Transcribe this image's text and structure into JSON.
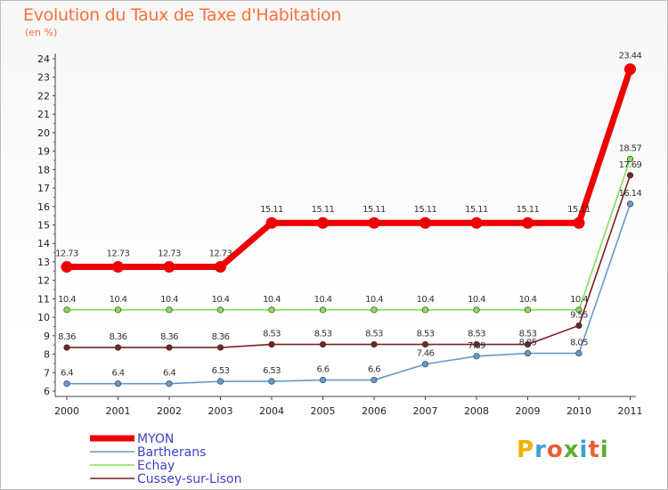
{
  "title": "Evolution du Taux de Taxe d'Habitation",
  "subtitle": "(en %)",
  "brand": {
    "letters": [
      "P",
      "r",
      "o",
      "x",
      "i",
      "t",
      "i"
    ],
    "colors": [
      "#f0b000",
      "#3aa0d8",
      "#e8603a",
      "#5cb030",
      "#3aa0d8",
      "#e8603a",
      "#5cb030"
    ]
  },
  "chart_data": {
    "type": "line",
    "title": "Evolution du Taux de Taxe d'Habitation",
    "ylabel": "(en %)",
    "xlabel": "",
    "ylim": [
      6,
      24
    ],
    "yticks": [
      "6",
      "7",
      "8",
      "9",
      "10",
      "11",
      "12",
      "13",
      "14",
      "15",
      "16",
      "17",
      "18",
      "19",
      "20",
      "21",
      "22",
      "23",
      "24"
    ],
    "categories": [
      "2000",
      "2001",
      "2002",
      "2003",
      "2004",
      "2005",
      "2006",
      "2007",
      "2008",
      "2009",
      "2010",
      "2011"
    ],
    "grid": false,
    "legend": "bottom-left",
    "series": [
      {
        "name": "MYON",
        "color": "#ee0000",
        "values": [
          12.73,
          12.73,
          12.73,
          12.73,
          15.11,
          15.11,
          15.11,
          15.11,
          15.11,
          15.11,
          15.11,
          23.44
        ],
        "labels": [
          "12.73",
          "12.73",
          "12.73",
          "12.73",
          "15.11",
          "15.11",
          "15.11",
          "15.11",
          "15.11",
          "15.11",
          "15.11",
          "23.44"
        ]
      },
      {
        "name": "Bartherans",
        "color": "#6699cc",
        "values": [
          6.4,
          6.4,
          6.4,
          6.53,
          6.53,
          6.6,
          6.6,
          7.46,
          7.89,
          8.05,
          8.05,
          16.14
        ],
        "labels": [
          "6.4",
          "6.4",
          "6.4",
          "6.53",
          "6.53",
          "6.6",
          "6.6",
          "7.46",
          "7.89",
          "8.05",
          "8.05",
          "16.14"
        ]
      },
      {
        "name": "Echay",
        "color": "#88dd55",
        "values": [
          10.4,
          10.4,
          10.4,
          10.4,
          10.4,
          10.4,
          10.4,
          10.4,
          10.4,
          10.4,
          10.4,
          18.57
        ],
        "labels": [
          "10.4",
          "10.4",
          "10.4",
          "10.4",
          "10.4",
          "10.4",
          "10.4",
          "10.4",
          "10.4",
          "10.4",
          "10.4",
          "18.57"
        ]
      },
      {
        "name": "Cussey-sur-Lison",
        "color": "#772222",
        "values": [
          8.36,
          8.36,
          8.36,
          8.36,
          8.53,
          8.53,
          8.53,
          8.53,
          8.53,
          8.53,
          9.55,
          17.69
        ],
        "labels": [
          "8.36",
          "8.36",
          "8.36",
          "8.36",
          "8.53",
          "8.53",
          "8.53",
          "8.53",
          "8.53",
          "8.53",
          "9.55",
          "17.69"
        ]
      }
    ]
  }
}
